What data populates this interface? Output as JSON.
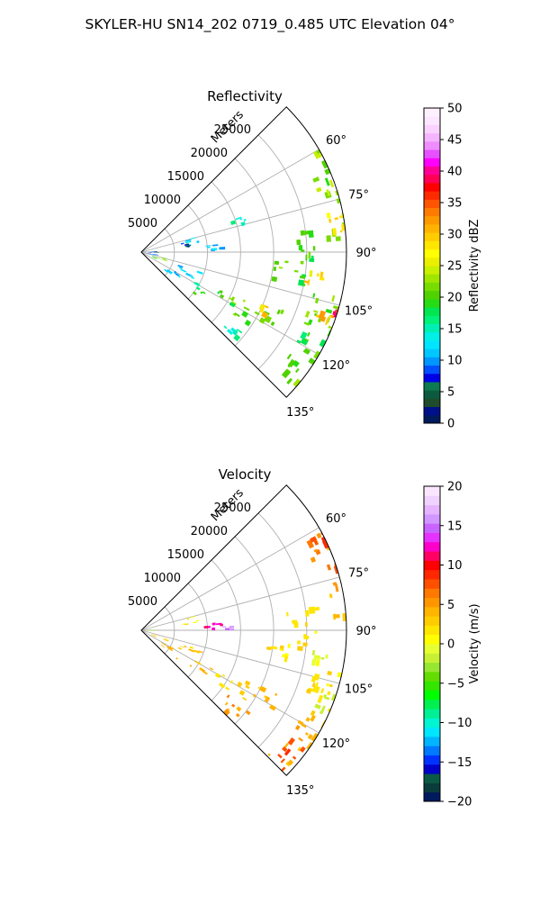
{
  "figure": {
    "title": "SKYLER-HU  SN14_202  0719_0.485 UTC Elevation 04°"
  },
  "colors": {
    "grid": "#b0b0b0",
    "reflectivity_scale": [
      "#001a5e",
      "#000f8a",
      "#1f4d2b",
      "#0b5a3f",
      "#0d7a52",
      "#0000e6",
      "#0050ff",
      "#0096ff",
      "#00c8ff",
      "#00e5ff",
      "#00f0e6",
      "#00f0b4",
      "#00f078",
      "#00e650",
      "#28dc14",
      "#50d200",
      "#78dc00",
      "#a0e600",
      "#c8f000",
      "#ebf000",
      "#ffff00",
      "#ffe600",
      "#ffcc00",
      "#ffb300",
      "#ff9900",
      "#ff7a00",
      "#ff5500",
      "#ff2a00",
      "#ff0000",
      "#ff0055",
      "#ff0096",
      "#ff00ff",
      "#e650ff",
      "#f08cff",
      "#f5b4ff",
      "#fad2ff",
      "#fde6ff",
      "#fff0ff"
    ],
    "velocity_scale": [
      "#001a5e",
      "#0a3c3c",
      "#0a5a46",
      "#0000c8",
      "#0032ff",
      "#0078ff",
      "#00b4ff",
      "#00e6ff",
      "#00f5d2",
      "#00f096",
      "#00f050",
      "#00ff00",
      "#32e600",
      "#64dc00",
      "#96e632",
      "#c8f032",
      "#e6ff32",
      "#ffff00",
      "#ffe600",
      "#ffcc00",
      "#ffb400",
      "#ff9600",
      "#ff7800",
      "#ff5000",
      "#ff2800",
      "#ff0000",
      "#ff0064",
      "#ff00c8",
      "#e632ff",
      "#c864ff",
      "#d296ff",
      "#e6b4ff",
      "#f0d2ff",
      "#fae6ff"
    ]
  },
  "chart_data": [
    {
      "type": "heatmap",
      "subtype": "polar-sector",
      "title": "Reflectivity",
      "radial_axis_label": "Meters",
      "radial_ticks": [
        "5000",
        "10000",
        "15000",
        "20000",
        "25000"
      ],
      "radial_tick_values": [
        5000,
        10000,
        15000,
        20000,
        25000
      ],
      "radial_max": 31000,
      "angle_ticks": [
        "60°",
        "75°",
        "90°",
        "105°",
        "120°",
        "135°"
      ],
      "angle_tick_values": [
        60,
        75,
        90,
        105,
        120,
        135
      ],
      "angle_range": [
        45,
        135
      ],
      "colorbar": {
        "label": "Reflectivity dBZ",
        "range": [
          0,
          50
        ],
        "ticks": [
          "0",
          "5",
          "10",
          "15",
          "20",
          "25",
          "30",
          "35",
          "40",
          "45",
          "50"
        ],
        "tick_values": [
          0,
          5,
          10,
          15,
          20,
          25,
          30,
          35,
          40,
          45,
          50
        ]
      },
      "echo_regions": [
        {
          "az": [
            60,
            75
          ],
          "range": [
            27500,
            31000
          ],
          "value": 22
        },
        {
          "az": [
            75,
            86
          ],
          "range": [
            28000,
            31000
          ],
          "value": 24
        },
        {
          "az": [
            79,
            84
          ],
          "range": [
            28500,
            30500
          ],
          "value": 30
        },
        {
          "az": [
            82,
            93
          ],
          "range": [
            22000,
            26500
          ],
          "value": 20
        },
        {
          "az": [
            93,
            101
          ],
          "range": [
            19000,
            25000
          ],
          "value": 20
        },
        {
          "az": [
            96,
            100
          ],
          "range": [
            24500,
            28000
          ],
          "value": 28
        },
        {
          "az": [
            100,
            115
          ],
          "range": [
            26500,
            31000
          ],
          "value": 22
        },
        {
          "az": [
            104,
            110
          ],
          "range": [
            28000,
            30500
          ],
          "value": 30
        },
        {
          "az": [
            105,
            108
          ],
          "range": [
            30000,
            31000
          ],
          "value": 38
        },
        {
          "az": [
            115,
            134
          ],
          "range": [
            26500,
            31000
          ],
          "value": 20
        },
        {
          "az": [
            112,
            120
          ],
          "range": [
            19000,
            23000
          ],
          "value": 20
        },
        {
          "az": [
            113,
            117
          ],
          "range": [
            19500,
            21500
          ],
          "value": 28
        },
        {
          "az": [
            114,
            124
          ],
          "range": [
            13000,
            19000
          ],
          "value": 20
        },
        {
          "az": [
            118,
            127
          ],
          "range": [
            9000,
            12000
          ],
          "value": 18
        },
        {
          "az": [
            126,
            134
          ],
          "range": [
            16000,
            20500
          ],
          "value": 16
        },
        {
          "az": [
            74,
            82
          ],
          "range": [
            6000,
            8500
          ],
          "value": 11
        },
        {
          "az": [
            84,
            88
          ],
          "range": [
            8500,
            12000
          ],
          "value": 10
        },
        {
          "az": [
            108,
            116
          ],
          "range": [
            5500,
            9500
          ],
          "value": 12
        },
        {
          "az": [
            118,
            128
          ],
          "range": [
            3500,
            7000
          ],
          "value": 11
        },
        {
          "az": [
            102,
            114
          ],
          "range": [
            1500,
            4000
          ],
          "value": 22
        },
        {
          "az": [
            78,
            84
          ],
          "range": [
            6000,
            7500
          ],
          "value": 4
        },
        {
          "az": [
            86,
            92
          ],
          "range": [
            1000,
            2500
          ],
          "value": 5
        },
        {
          "az": [
            96,
            104
          ],
          "range": [
            800,
            2000
          ],
          "value": 8
        },
        {
          "az": [
            70,
            80
          ],
          "range": [
            14000,
            16500
          ],
          "value": 14
        }
      ]
    },
    {
      "type": "heatmap",
      "subtype": "polar-sector",
      "title": "Velocity",
      "radial_axis_label": "Meters",
      "radial_ticks": [
        "5000",
        "10000",
        "15000",
        "20000",
        "25000"
      ],
      "radial_tick_values": [
        5000,
        10000,
        15000,
        20000,
        25000
      ],
      "radial_max": 31000,
      "angle_ticks": [
        "60°",
        "75°",
        "90°",
        "105°",
        "120°",
        "135°"
      ],
      "angle_tick_values": [
        60,
        75,
        90,
        105,
        120,
        135
      ],
      "angle_range": [
        45,
        135
      ],
      "colorbar": {
        "label": "Velocity (m/s)",
        "range": [
          -20,
          20
        ],
        "ticks": [
          "−20",
          "−15",
          "−10",
          "−5",
          "0",
          "5",
          "10",
          "15",
          "20"
        ],
        "tick_values": [
          -20,
          -15,
          -10,
          -5,
          0,
          5,
          10,
          15,
          20
        ]
      },
      "echo_regions": [
        {
          "az": [
            60,
            75
          ],
          "range": [
            27500,
            31000
          ],
          "value": 6
        },
        {
          "az": [
            58,
            64
          ],
          "range": [
            28500,
            31000
          ],
          "value": 8
        },
        {
          "az": [
            75,
            86
          ],
          "range": [
            28000,
            31000
          ],
          "value": 4
        },
        {
          "az": [
            82,
            93
          ],
          "range": [
            22000,
            26500
          ],
          "value": 2
        },
        {
          "az": [
            93,
            101
          ],
          "range": [
            19000,
            25000
          ],
          "value": 2
        },
        {
          "az": [
            96,
            100
          ],
          "range": [
            26000,
            28500
          ],
          "value": -1
        },
        {
          "az": [
            100,
            115
          ],
          "range": [
            26500,
            31000
          ],
          "value": 2
        },
        {
          "az": [
            108,
            116
          ],
          "range": [
            28500,
            31000
          ],
          "value": -2
        },
        {
          "az": [
            115,
            134
          ],
          "range": [
            26500,
            31000
          ],
          "value": 4
        },
        {
          "az": [
            124,
            134
          ],
          "range": [
            27500,
            31000
          ],
          "value": 8
        },
        {
          "az": [
            112,
            120
          ],
          "range": [
            19000,
            23000
          ],
          "value": 3
        },
        {
          "az": [
            114,
            124
          ],
          "range": [
            13000,
            19000
          ],
          "value": 3
        },
        {
          "az": [
            118,
            127
          ],
          "range": [
            9000,
            12000
          ],
          "value": 3
        },
        {
          "az": [
            126,
            134
          ],
          "range": [
            16000,
            20500
          ],
          "value": 5
        },
        {
          "az": [
            74,
            82
          ],
          "range": [
            6000,
            8500
          ],
          "value": 1
        },
        {
          "az": [
            84,
            88
          ],
          "range": [
            9000,
            12000
          ],
          "value": 12
        },
        {
          "az": [
            86,
            89
          ],
          "range": [
            12000,
            13500
          ],
          "value": 16
        },
        {
          "az": [
            108,
            116
          ],
          "range": [
            5500,
            9500
          ],
          "value": 3
        },
        {
          "az": [
            118,
            128
          ],
          "range": [
            3500,
            7000
          ],
          "value": 4
        },
        {
          "az": [
            102,
            114
          ],
          "range": [
            1500,
            4000
          ],
          "value": 3
        },
        {
          "az": [
            88,
            92
          ],
          "range": [
            500,
            2000
          ],
          "value": -3
        }
      ]
    }
  ]
}
